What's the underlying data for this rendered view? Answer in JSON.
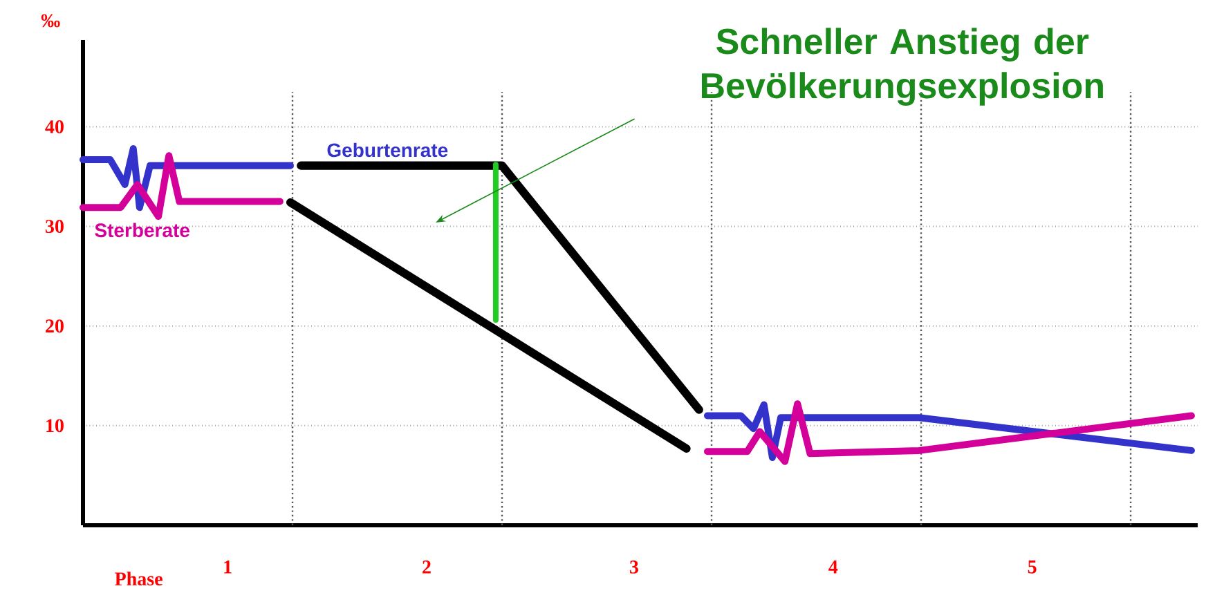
{
  "chart_data": {
    "type": "line",
    "xlabel": "Phase",
    "ylabel": "‰",
    "xlim": [
      0,
      5.32
    ],
    "ylim": [
      0,
      48.7
    ],
    "xticks": [
      {
        "value": 0.69,
        "label": "1"
      },
      {
        "value": 1.64,
        "label": "2"
      },
      {
        "value": 2.63,
        "label": "3"
      },
      {
        "value": 3.58,
        "label": "4"
      },
      {
        "value": 4.53,
        "label": "5"
      }
    ],
    "yticks": [
      10,
      20,
      30,
      40
    ],
    "grid": "y",
    "ref_lines": [
      {
        "axis": "x",
        "value": 1,
        "line_style": "dotted",
        "color": "#555555"
      },
      {
        "axis": "x",
        "value": 2,
        "line_style": "dotted",
        "color": "#555555"
      },
      {
        "axis": "x",
        "value": 3,
        "line_style": "dotted",
        "color": "#555555"
      },
      {
        "axis": "x",
        "value": 4,
        "line_style": "dotted",
        "color": "#555555"
      },
      {
        "axis": "x",
        "value": 5,
        "line_style": "dotted",
        "color": "#555555"
      }
    ],
    "annotations": [
      "Schneller Anstieg der Bevölkerungsexplosion"
    ],
    "series": [
      {
        "name": "Geburtenrate",
        "color": "#3333cc",
        "x": [
          0,
          0.13,
          0.2,
          0.24,
          0.27,
          0.32,
          0.99,
          null,
          2.98,
          3.14,
          3.2,
          3.25,
          3.29,
          3.33,
          3.99,
          5.29
        ],
        "values": [
          36.7,
          36.7,
          34.2,
          37.8,
          31.9,
          36.1,
          36.1,
          null,
          11.0,
          11.0,
          9.7,
          12.1,
          6.8,
          10.8,
          10.8,
          7.5
        ]
      },
      {
        "name": "Sterberate",
        "color": "#d4009a",
        "x": [
          0,
          0.18,
          0.26,
          0.36,
          0.41,
          0.46,
          0.94,
          null,
          2.98,
          3.17,
          3.23,
          3.35,
          3.41,
          3.47,
          3.99,
          5.29
        ],
        "values": [
          31.9,
          31.9,
          34.2,
          31.0,
          37.1,
          32.5,
          32.5,
          null,
          7.4,
          7.4,
          9.4,
          6.4,
          12.2,
          7.2,
          7.5,
          11.0
        ]
      },
      {
        "color": "#000000",
        "x": [
          1.04,
          2.0,
          2.94
        ],
        "values": [
          36.1,
          36.1,
          11.6
        ]
      },
      {
        "color": "#000000",
        "x": [
          0.99,
          2.88
        ],
        "values": [
          32.4,
          7.7
        ]
      },
      {
        "color": "#22cc22",
        "x": [
          1.97,
          1.97
        ],
        "values": [
          36.2,
          20.6
        ]
      }
    ]
  }
}
